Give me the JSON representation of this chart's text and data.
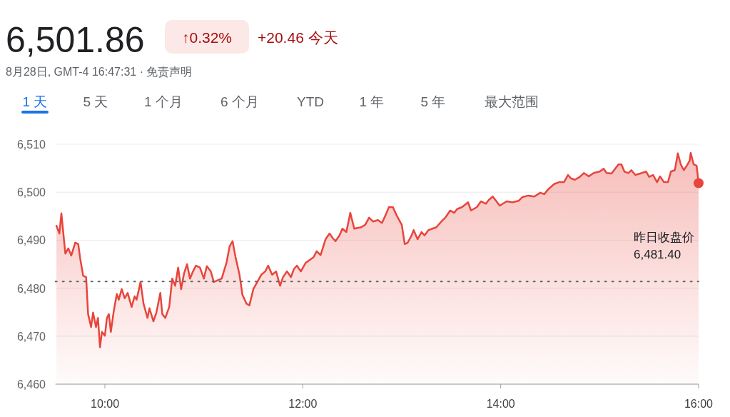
{
  "chart_data": {
    "type": "area",
    "title": "6,501.86",
    "subtitle": "8月28日, GMT-4 16:47:31 · 免责声明",
    "annotations": [
      "↑0.32%",
      "+20.46 今天",
      "1 天",
      "5 天",
      "1 个月",
      "6 个月",
      "YTD",
      "1 年",
      "5 年",
      "最大范围"
    ],
    "xlim": [
      9.5,
      16
    ],
    "xticks": [
      {
        "value": 10,
        "label": "10:00"
      },
      {
        "value": 12,
        "label": "12:00"
      },
      {
        "value": 14,
        "label": "14:00"
      },
      {
        "value": 16,
        "label": "16:00"
      }
    ],
    "ylim": [
      6460,
      6510
    ],
    "yticks": [
      {
        "value": 6460,
        "label": "6,460"
      },
      {
        "value": 6470,
        "label": "6,470"
      },
      {
        "value": 6480,
        "label": "6,480"
      },
      {
        "value": 6490,
        "label": "6,490"
      },
      {
        "value": 6500,
        "label": "6,500"
      },
      {
        "value": 6510,
        "label": "6,510"
      }
    ],
    "grid": "y",
    "ref_lines": [
      {
        "axis": "y",
        "value": 6481.4,
        "label": "昨日收盘价 6,481.40",
        "color": "#5f6368",
        "line_style": "dotted"
      }
    ],
    "series": [
      {
        "color": "#e8453c",
        "x": [
          9.51,
          9.54,
          9.56,
          9.6,
          9.63,
          9.66,
          9.7,
          9.73,
          9.75,
          9.78,
          9.81,
          9.83,
          9.86,
          9.88,
          9.91,
          9.93,
          9.95,
          9.97,
          10.0,
          10.02,
          10.04,
          10.06,
          10.09,
          10.12,
          10.14,
          10.17,
          10.2,
          10.23,
          10.27,
          10.3,
          10.32,
          10.36,
          10.39,
          10.43,
          10.45,
          10.49,
          10.52,
          10.56,
          10.58,
          10.61,
          10.65,
          10.68,
          10.71,
          10.74,
          10.77,
          10.8,
          10.83,
          10.86,
          10.89,
          10.92,
          10.96,
          11.0,
          11.03,
          11.07,
          11.1,
          11.18,
          11.23,
          11.26,
          11.29,
          11.32,
          11.36,
          11.39,
          11.43,
          11.46,
          11.5,
          11.54,
          11.58,
          11.62,
          11.65,
          11.69,
          11.73,
          11.77,
          11.8,
          11.84,
          11.88,
          11.91,
          11.94,
          11.98,
          12.03,
          12.11,
          12.14,
          12.18,
          12.23,
          12.27,
          12.3,
          12.33,
          12.37,
          12.4,
          12.44,
          12.48,
          12.52,
          12.59,
          12.63,
          12.67,
          12.71,
          12.76,
          12.8,
          12.84,
          12.87,
          12.91,
          12.95,
          13.0,
          13.03,
          13.06,
          13.1,
          13.12,
          13.16,
          13.2,
          13.23,
          13.27,
          13.35,
          13.4,
          13.44,
          13.49,
          13.53,
          13.56,
          13.61,
          13.67,
          13.7,
          13.76,
          13.8,
          13.85,
          13.88,
          13.92,
          13.99,
          14.06,
          14.12,
          14.18,
          14.22,
          14.28,
          14.34,
          14.4,
          14.44,
          14.48,
          14.54,
          14.59,
          14.64,
          14.68,
          14.71,
          14.75,
          14.8,
          14.84,
          14.89,
          14.94,
          15.0,
          15.04,
          15.07,
          15.12,
          15.19,
          15.22,
          15.25,
          15.29,
          15.32,
          15.36,
          15.41,
          15.47,
          15.5,
          15.54,
          15.58,
          15.61,
          15.65,
          15.69,
          15.72,
          15.76,
          15.79,
          15.82,
          15.85,
          15.88,
          15.91,
          15.92,
          15.95,
          15.98,
          16.0
        ],
        "values": [
          6493.0,
          6491.4,
          6495.6,
          6487.2,
          6488.3,
          6486.8,
          6489.5,
          6489.2,
          6486.2,
          6482.6,
          6482.3,
          6474.6,
          6471.9,
          6474.9,
          6471.9,
          6473.8,
          6467.7,
          6470.9,
          6470.1,
          6473.8,
          6474.6,
          6470.9,
          6475.3,
          6478.8,
          6477.6,
          6479.8,
          6477.9,
          6479.0,
          6476.1,
          6478.3,
          6477.6,
          6481.3,
          6476.8,
          6473.8,
          6475.8,
          6473.1,
          6474.9,
          6479.0,
          6474.6,
          6473.8,
          6476.1,
          6482.0,
          6480.5,
          6484.3,
          6479.8,
          6483.1,
          6485.0,
          6482.0,
          6483.5,
          6484.7,
          6484.3,
          6482.0,
          6484.6,
          6483.5,
          6481.3,
          6482.0,
          6485.4,
          6488.7,
          6489.8,
          6486.5,
          6482.8,
          6478.6,
          6476.8,
          6476.4,
          6479.8,
          6481.3,
          6482.8,
          6483.5,
          6484.7,
          6482.8,
          6483.5,
          6480.5,
          6482.3,
          6483.5,
          6482.3,
          6484.0,
          6484.7,
          6483.5,
          6485.3,
          6486.5,
          6487.7,
          6486.9,
          6490.2,
          6491.4,
          6490.5,
          6489.8,
          6491.0,
          6492.4,
          6491.7,
          6495.7,
          6492.4,
          6492.7,
          6493.2,
          6494.7,
          6493.9,
          6494.2,
          6493.6,
          6495.4,
          6496.9,
          6496.9,
          6495.1,
          6493.2,
          6489.2,
          6489.5,
          6491.0,
          6492.1,
          6490.2,
          6491.7,
          6491.0,
          6492.1,
          6492.7,
          6493.9,
          6494.7,
          6496.2,
          6495.7,
          6496.5,
          6496.9,
          6497.9,
          6496.2,
          6496.9,
          6498.1,
          6497.6,
          6498.4,
          6499.1,
          6497.2,
          6498.1,
          6497.9,
          6498.2,
          6499.0,
          6499.3,
          6499.1,
          6499.9,
          6499.6,
          6500.6,
          6501.7,
          6502.1,
          6502.1,
          6503.6,
          6502.9,
          6502.6,
          6503.2,
          6504.0,
          6503.3,
          6504.0,
          6504.3,
          6504.9,
          6504.0,
          6503.9,
          6505.8,
          6505.8,
          6504.3,
          6504.0,
          6504.6,
          6503.6,
          6503.9,
          6504.3,
          6503.2,
          6503.6,
          6502.1,
          6503.3,
          6502.1,
          6502.1,
          6504.3,
          6504.6,
          6508.1,
          6505.8,
          6504.6,
          6505.5,
          6506.6,
          6508.2,
          6505.8,
          6505.5,
          6501.9
        ]
      }
    ]
  }
}
